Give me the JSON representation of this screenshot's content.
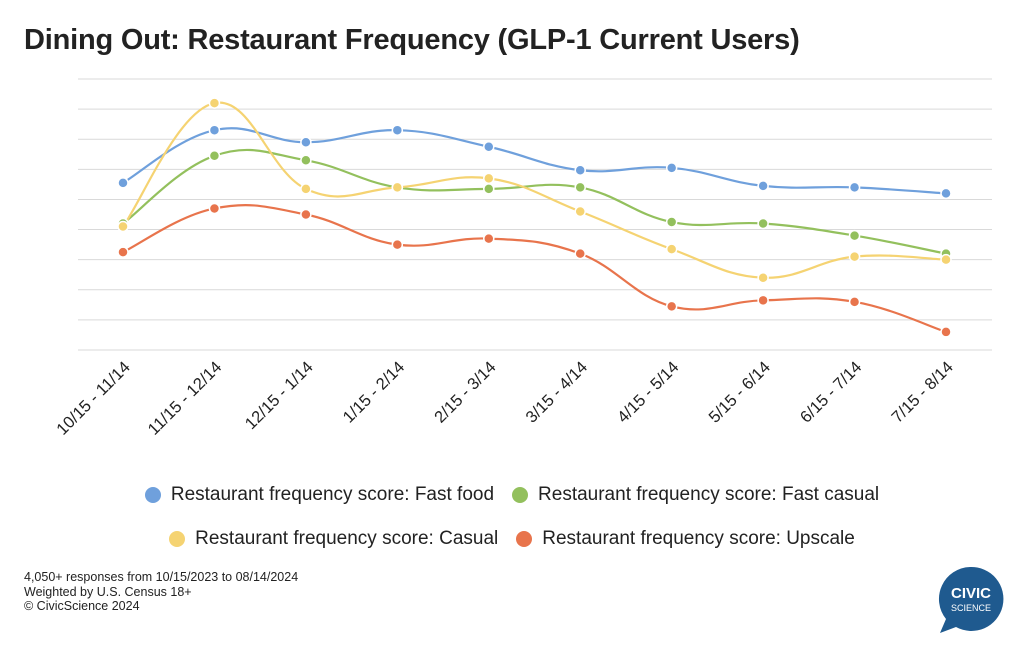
{
  "title": "Dining Out: Restaurant Frequency (GLP-1 Current Users)",
  "chart_data": {
    "type": "line",
    "title": "Dining Out: Restaurant Frequency (GLP-1 Current Users)",
    "xlabel": "",
    "ylabel": "",
    "categories": [
      "10/15 - 11/14",
      "11/15 - 12/14",
      "12/15 - 1/14",
      "1/15 - 2/14",
      "2/15 - 3/14",
      "3/15 - 4/14",
      "4/15 - 5/14",
      "5/15 - 6/14",
      "6/15 - 7/14",
      "7/15 - 8/14"
    ],
    "ylim": [
      0,
      9
    ],
    "y_tick_labels_shown": false,
    "grid": true,
    "smooth": true,
    "legend_position": "bottom",
    "series": [
      {
        "name": "Restaurant frequency score: Fast food",
        "color": "#6fa0dc",
        "values": [
          5.55,
          7.3,
          6.9,
          7.3,
          6.75,
          5.97,
          6.05,
          5.45,
          5.4,
          5.2
        ]
      },
      {
        "name": "Restaurant frequency score: Fast casual",
        "color": "#93c05d",
        "values": [
          4.2,
          6.45,
          6.3,
          5.4,
          5.35,
          5.4,
          4.25,
          4.2,
          3.8,
          3.2
        ]
      },
      {
        "name": "Restaurant frequency score: Casual",
        "color": "#f5d372",
        "values": [
          4.1,
          8.2,
          5.35,
          5.4,
          5.7,
          4.6,
          3.35,
          2.4,
          3.1,
          3.0
        ]
      },
      {
        "name": "Restaurant frequency score: Upscale",
        "color": "#e8744c",
        "values": [
          3.25,
          4.7,
          4.5,
          3.5,
          3.7,
          3.2,
          1.45,
          1.65,
          1.6,
          0.6
        ]
      }
    ]
  },
  "legend": {
    "row1": [
      "Restaurant frequency score: Fast food",
      "Restaurant frequency score: Fast casual"
    ],
    "row2": [
      "Restaurant frequency score: Casual",
      "Restaurant frequency score: Upscale"
    ],
    "colors1": [
      "#6fa0dc",
      "#93c05d"
    ],
    "colors2": [
      "#f5d372",
      "#e8744c"
    ]
  },
  "footnote": {
    "line1": "4,050+ responses from 10/15/2023 to 08/14/2024",
    "line2": "Weighted by U.S. Census 18+",
    "line3": "© CivicScience 2024"
  },
  "logo": {
    "line1": "CIVIC",
    "line2": "SCIENCE",
    "color": "#1f5a8f"
  }
}
